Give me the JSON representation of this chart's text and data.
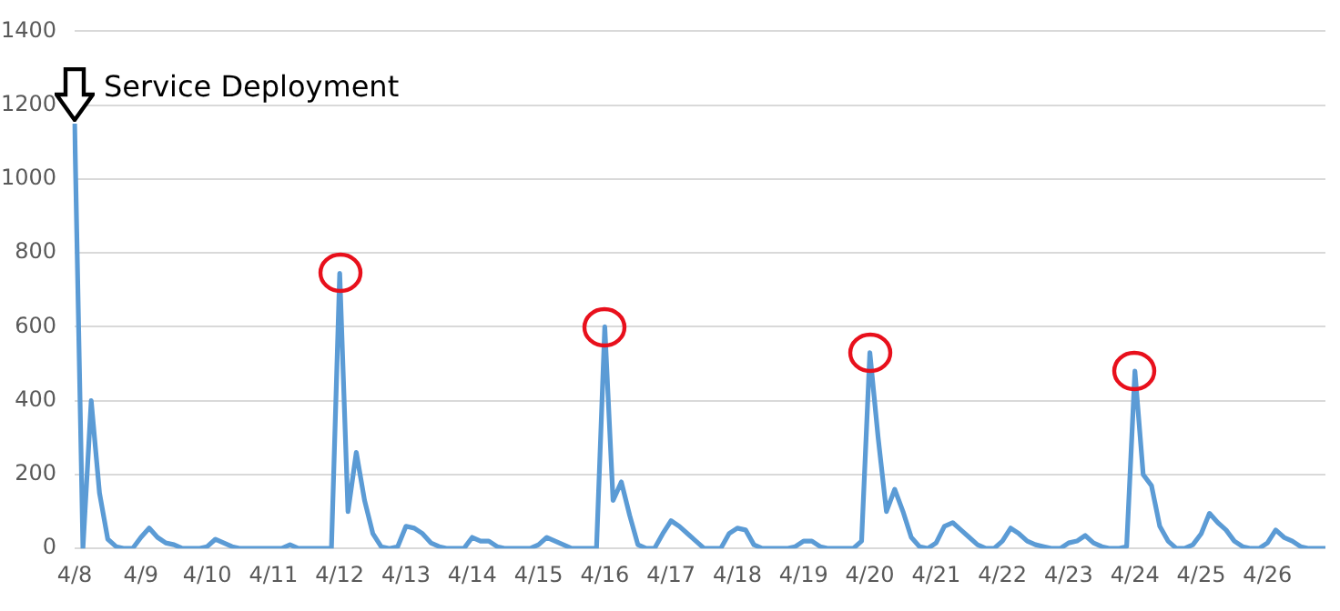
{
  "chart_data": {
    "type": "line",
    "categories": [
      "4/8",
      null,
      null,
      null,
      null,
      null,
      null,
      null,
      "4/9",
      null,
      null,
      null,
      null,
      null,
      null,
      null,
      "4/10",
      null,
      null,
      null,
      null,
      null,
      null,
      null,
      "4/11",
      null,
      null,
      null,
      null,
      null,
      null,
      null,
      "4/12",
      null,
      null,
      null,
      null,
      null,
      null,
      null,
      "4/13",
      null,
      null,
      null,
      null,
      null,
      null,
      null,
      "4/14",
      null,
      null,
      null,
      null,
      null,
      null,
      null,
      "4/15",
      null,
      null,
      null,
      null,
      null,
      null,
      null,
      "4/16",
      null,
      null,
      null,
      null,
      null,
      null,
      null,
      "4/17",
      null,
      null,
      null,
      null,
      null,
      null,
      null,
      "4/18",
      null,
      null,
      null,
      null,
      null,
      null,
      null,
      "4/19",
      null,
      null,
      null,
      null,
      null,
      null,
      null,
      "4/20",
      null,
      null,
      null,
      null,
      null,
      null,
      null,
      "4/21",
      null,
      null,
      null,
      null,
      null,
      null,
      null,
      "4/22",
      null,
      null,
      null,
      null,
      null,
      null,
      null,
      "4/23",
      null,
      null,
      null,
      null,
      null,
      null,
      null,
      "4/24",
      null,
      null,
      null,
      null,
      null,
      null,
      null,
      "4/25",
      null,
      null,
      null,
      null,
      null,
      null,
      null,
      "4/26",
      null,
      null,
      null,
      null,
      null,
      null,
      null
    ],
    "series": [
      {
        "color": "#5b9bd5",
        "values": [
          1150,
          0,
          400,
          150,
          25,
          5,
          0,
          0,
          30,
          55,
          30,
          15,
          10,
          0,
          0,
          0,
          5,
          25,
          15,
          5,
          0,
          0,
          0,
          0,
          0,
          0,
          10,
          0,
          0,
          0,
          0,
          0,
          745,
          100,
          260,
          130,
          40,
          5,
          0,
          5,
          60,
          55,
          40,
          15,
          5,
          0,
          0,
          0,
          30,
          20,
          20,
          5,
          0,
          0,
          0,
          0,
          10,
          30,
          20,
          10,
          0,
          0,
          0,
          0,
          600,
          130,
          180,
          90,
          10,
          0,
          0,
          40,
          75,
          60,
          40,
          20,
          0,
          0,
          0,
          40,
          55,
          50,
          10,
          0,
          0,
          0,
          0,
          5,
          20,
          20,
          5,
          0,
          0,
          0,
          0,
          20,
          530,
          300,
          100,
          160,
          100,
          30,
          5,
          0,
          15,
          60,
          70,
          50,
          30,
          10,
          0,
          0,
          20,
          55,
          40,
          20,
          10,
          5,
          0,
          0,
          15,
          20,
          35,
          15,
          5,
          0,
          0,
          5,
          480,
          200,
          170,
          60,
          20,
          0,
          0,
          10,
          40,
          95,
          70,
          50,
          20,
          5,
          0,
          0,
          15,
          50,
          30,
          20,
          5,
          0,
          0,
          0
        ]
      }
    ],
    "ylim": [
      0,
      1400
    ],
    "yticks": [
      0,
      200,
      400,
      600,
      800,
      1000,
      1200,
      1400
    ],
    "grid": "y",
    "marker": "none",
    "line_style": "solid",
    "annotations": [
      {
        "text": "Service Deployment",
        "x": "4/8",
        "y": 1150
      },
      {
        "x": "4/12"
      },
      {
        "x": "4/16"
      },
      {
        "x": "4/20"
      },
      {
        "x": "4/24"
      }
    ]
  }
}
